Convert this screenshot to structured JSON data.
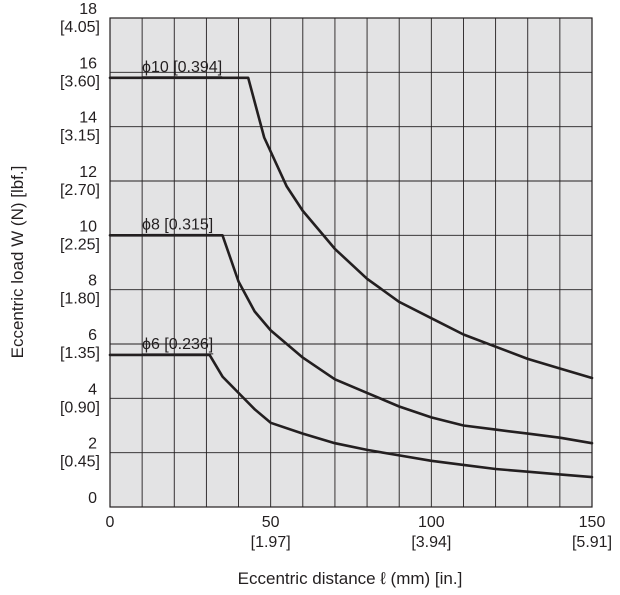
{
  "chart_data": {
    "type": "line",
    "xlabel": "Eccentric distance  ℓ (mm) [in.]",
    "ylabel": "Eccentric load W (N) [lbf.]",
    "xlim": [
      0,
      150
    ],
    "ylim": [
      0,
      18
    ],
    "grid": true,
    "colors": {
      "plot_bg": "#e3e3e4",
      "grid": "#231f20",
      "line": "#231f20"
    },
    "x_ticks": [
      {
        "value": 0,
        "label": "0",
        "label2": ""
      },
      {
        "value": 50,
        "label": "50",
        "label2": "[1.97]"
      },
      {
        "value": 100,
        "label": "100",
        "label2": "[3.94]"
      },
      {
        "value": 150,
        "label": "150",
        "label2": "[5.91]"
      }
    ],
    "y_ticks": [
      {
        "value": 0,
        "label": "0",
        "label2": ""
      },
      {
        "value": 2,
        "label": "2",
        "label2": "[0.45]"
      },
      {
        "value": 4,
        "label": "4",
        "label2": "[0.90]"
      },
      {
        "value": 6,
        "label": "6",
        "label2": "[1.35]"
      },
      {
        "value": 8,
        "label": "8",
        "label2": "[1.80]"
      },
      {
        "value": 10,
        "label": "10",
        "label2": "[2.25]"
      },
      {
        "value": 12,
        "label": "12",
        "label2": "[2.70]"
      },
      {
        "value": 14,
        "label": "14",
        "label2": "[3.15]"
      },
      {
        "value": 16,
        "label": "16",
        "label2": "[3.60]"
      },
      {
        "value": 18,
        "label": "18",
        "label2": "[4.05]"
      }
    ],
    "series": [
      {
        "name": "ϕ10 [0.394]",
        "points": [
          [
            0,
            15.8
          ],
          [
            43,
            15.8
          ],
          [
            48,
            13.6
          ],
          [
            55,
            11.8
          ],
          [
            60,
            10.9
          ],
          [
            70,
            9.5
          ],
          [
            80,
            8.4
          ],
          [
            90,
            7.55
          ],
          [
            100,
            6.95
          ],
          [
            110,
            6.35
          ],
          [
            120,
            5.9
          ],
          [
            130,
            5.45
          ],
          [
            140,
            5.1
          ],
          [
            150,
            4.75
          ]
        ]
      },
      {
        "name": "ϕ8 [0.315]",
        "points": [
          [
            0,
            10.0
          ],
          [
            35,
            10.0
          ],
          [
            40,
            8.3
          ],
          [
            45,
            7.2
          ],
          [
            50,
            6.5
          ],
          [
            60,
            5.5
          ],
          [
            70,
            4.7
          ],
          [
            80,
            4.2
          ],
          [
            90,
            3.7
          ],
          [
            100,
            3.3
          ],
          [
            110,
            3.0
          ],
          [
            120,
            2.85
          ],
          [
            130,
            2.7
          ],
          [
            140,
            2.55
          ],
          [
            150,
            2.35
          ]
        ]
      },
      {
        "name": "ϕ6 [0.236]",
        "points": [
          [
            0,
            5.6
          ],
          [
            31,
            5.6
          ],
          [
            35,
            4.8
          ],
          [
            40,
            4.2
          ],
          [
            45,
            3.6
          ],
          [
            50,
            3.1
          ],
          [
            60,
            2.7
          ],
          [
            70,
            2.35
          ],
          [
            80,
            2.1
          ],
          [
            90,
            1.9
          ],
          [
            100,
            1.7
          ],
          [
            110,
            1.55
          ],
          [
            120,
            1.4
          ],
          [
            130,
            1.3
          ],
          [
            140,
            1.2
          ],
          [
            150,
            1.1
          ]
        ]
      }
    ]
  }
}
